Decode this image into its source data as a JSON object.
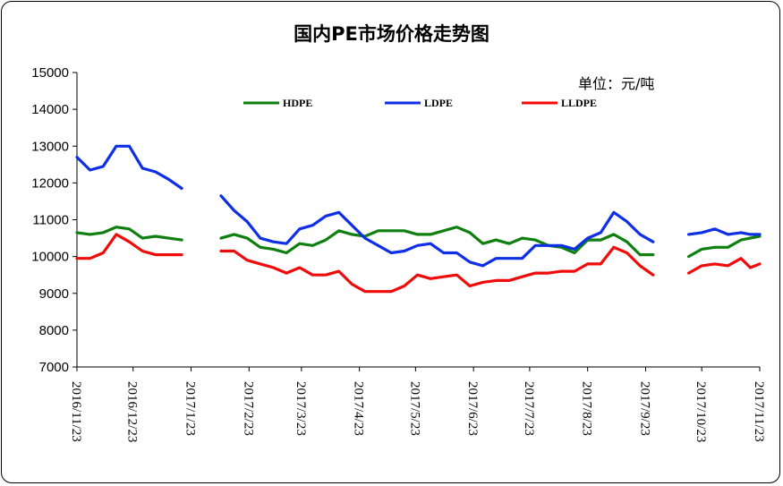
{
  "chart_data": {
    "type": "line",
    "title": "国内PE市场价格走势图",
    "unit_label": "单位：元/吨",
    "ylim": [
      7000,
      15000
    ],
    "yticks": [
      7000,
      8000,
      9000,
      10000,
      11000,
      12000,
      13000,
      14000,
      15000
    ],
    "x_ticks": [
      "2016/11/23",
      "2016/12/23",
      "2017/1/23",
      "2017/2/23",
      "2017/3/23",
      "2017/4/23",
      "2017/5/23",
      "2017/6/23",
      "2017/7/23",
      "2017/8/23",
      "2017/9/23",
      "2017/10/23",
      "2017/11/23"
    ],
    "x_start": "2016-11-23",
    "x_end": "2017-11-23",
    "grid": false,
    "legend": "top",
    "colors": {
      "HDPE": "#0f7f0f",
      "LDPE": "#0f2fe6",
      "LLDPE": "#f00a0a"
    },
    "series": [
      {
        "name": "HDPE",
        "points": [
          {
            "x": "2016-11-23",
            "y": 10650
          },
          {
            "x": "2016-11-30",
            "y": 10600
          },
          {
            "x": "2016-12-07",
            "y": 10650
          },
          {
            "x": "2016-12-14",
            "y": 10800
          },
          {
            "x": "2016-12-21",
            "y": 10750
          },
          {
            "x": "2016-12-28",
            "y": 10500
          },
          {
            "x": "2017-01-04",
            "y": 10550
          },
          {
            "x": "2017-01-11",
            "y": 10500
          },
          {
            "x": "2017-01-18",
            "y": 10450
          },
          null,
          {
            "x": "2017-02-08",
            "y": 10500
          },
          {
            "x": "2017-02-15",
            "y": 10600
          },
          {
            "x": "2017-02-22",
            "y": 10500
          },
          {
            "x": "2017-03-01",
            "y": 10250
          },
          {
            "x": "2017-03-08",
            "y": 10200
          },
          {
            "x": "2017-03-15",
            "y": 10100
          },
          {
            "x": "2017-03-22",
            "y": 10350
          },
          {
            "x": "2017-03-29",
            "y": 10300
          },
          {
            "x": "2017-04-05",
            "y": 10450
          },
          {
            "x": "2017-04-12",
            "y": 10700
          },
          {
            "x": "2017-04-19",
            "y": 10600
          },
          {
            "x": "2017-04-26",
            "y": 10550
          },
          {
            "x": "2017-05-03",
            "y": 10700
          },
          {
            "x": "2017-05-10",
            "y": 10700
          },
          {
            "x": "2017-05-17",
            "y": 10700
          },
          {
            "x": "2017-05-24",
            "y": 10600
          },
          {
            "x": "2017-05-31",
            "y": 10600
          },
          {
            "x": "2017-06-07",
            "y": 10700
          },
          {
            "x": "2017-06-14",
            "y": 10800
          },
          {
            "x": "2017-06-21",
            "y": 10650
          },
          {
            "x": "2017-06-28",
            "y": 10350
          },
          {
            "x": "2017-07-05",
            "y": 10450
          },
          {
            "x": "2017-07-12",
            "y": 10350
          },
          {
            "x": "2017-07-19",
            "y": 10500
          },
          {
            "x": "2017-07-26",
            "y": 10450
          },
          {
            "x": "2017-08-02",
            "y": 10300
          },
          {
            "x": "2017-08-09",
            "y": 10250
          },
          {
            "x": "2017-08-16",
            "y": 10100
          },
          {
            "x": "2017-08-23",
            "y": 10450
          },
          {
            "x": "2017-08-30",
            "y": 10450
          },
          {
            "x": "2017-09-06",
            "y": 10600
          },
          {
            "x": "2017-09-13",
            "y": 10400
          },
          {
            "x": "2017-09-20",
            "y": 10050
          },
          {
            "x": "2017-09-27",
            "y": 10050
          },
          null,
          {
            "x": "2017-10-16",
            "y": 10000
          },
          {
            "x": "2017-10-23",
            "y": 10200
          },
          {
            "x": "2017-10-30",
            "y": 10250
          },
          {
            "x": "2017-11-06",
            "y": 10250
          },
          {
            "x": "2017-11-13",
            "y": 10450
          },
          {
            "x": "2017-11-23",
            "y": 10550
          }
        ]
      },
      {
        "name": "LDPE",
        "points": [
          {
            "x": "2016-11-23",
            "y": 12700
          },
          {
            "x": "2016-11-30",
            "y": 12350
          },
          {
            "x": "2016-12-07",
            "y": 12450
          },
          {
            "x": "2016-12-14",
            "y": 13000
          },
          {
            "x": "2016-12-21",
            "y": 13000
          },
          {
            "x": "2016-12-28",
            "y": 12400
          },
          {
            "x": "2017-01-04",
            "y": 12300
          },
          {
            "x": "2017-01-11",
            "y": 12100
          },
          {
            "x": "2017-01-18",
            "y": 11850
          },
          null,
          {
            "x": "2017-02-08",
            "y": 11650
          },
          {
            "x": "2017-02-15",
            "y": 11250
          },
          {
            "x": "2017-02-22",
            "y": 10950
          },
          {
            "x": "2017-03-01",
            "y": 10500
          },
          {
            "x": "2017-03-08",
            "y": 10400
          },
          {
            "x": "2017-03-15",
            "y": 10350
          },
          {
            "x": "2017-03-22",
            "y": 10750
          },
          {
            "x": "2017-03-29",
            "y": 10850
          },
          {
            "x": "2017-04-05",
            "y": 11100
          },
          {
            "x": "2017-04-12",
            "y": 11200
          },
          {
            "x": "2017-04-19",
            "y": 10850
          },
          {
            "x": "2017-04-26",
            "y": 10500
          },
          {
            "x": "2017-05-03",
            "y": 10300
          },
          {
            "x": "2017-05-10",
            "y": 10100
          },
          {
            "x": "2017-05-17",
            "y": 10150
          },
          {
            "x": "2017-05-24",
            "y": 10300
          },
          {
            "x": "2017-05-31",
            "y": 10350
          },
          {
            "x": "2017-06-07",
            "y": 10100
          },
          {
            "x": "2017-06-14",
            "y": 10100
          },
          {
            "x": "2017-06-21",
            "y": 9850
          },
          {
            "x": "2017-06-28",
            "y": 9750
          },
          {
            "x": "2017-07-05",
            "y": 9950
          },
          {
            "x": "2017-07-12",
            "y": 9950
          },
          {
            "x": "2017-07-19",
            "y": 9950
          },
          {
            "x": "2017-07-26",
            "y": 10300
          },
          {
            "x": "2017-08-02",
            "y": 10300
          },
          {
            "x": "2017-08-09",
            "y": 10300
          },
          {
            "x": "2017-08-16",
            "y": 10200
          },
          {
            "x": "2017-08-23",
            "y": 10500
          },
          {
            "x": "2017-08-30",
            "y": 10650
          },
          {
            "x": "2017-09-06",
            "y": 11200
          },
          {
            "x": "2017-09-13",
            "y": 10950
          },
          {
            "x": "2017-09-20",
            "y": 10600
          },
          {
            "x": "2017-09-27",
            "y": 10400
          },
          null,
          {
            "x": "2017-10-16",
            "y": 10600
          },
          {
            "x": "2017-10-23",
            "y": 10650
          },
          {
            "x": "2017-10-30",
            "y": 10750
          },
          {
            "x": "2017-11-06",
            "y": 10600
          },
          {
            "x": "2017-11-13",
            "y": 10650
          },
          {
            "x": "2017-11-18",
            "y": 10600
          },
          {
            "x": "2017-11-23",
            "y": 10600
          }
        ]
      },
      {
        "name": "LLDPE",
        "points": [
          {
            "x": "2016-11-23",
            "y": 9950
          },
          {
            "x": "2016-11-30",
            "y": 9950
          },
          {
            "x": "2016-12-07",
            "y": 10100
          },
          {
            "x": "2016-12-14",
            "y": 10600
          },
          {
            "x": "2016-12-21",
            "y": 10400
          },
          {
            "x": "2016-12-28",
            "y": 10150
          },
          {
            "x": "2017-01-04",
            "y": 10050
          },
          {
            "x": "2017-01-11",
            "y": 10050
          },
          {
            "x": "2017-01-18",
            "y": 10050
          },
          null,
          {
            "x": "2017-02-08",
            "y": 10150
          },
          {
            "x": "2017-02-15",
            "y": 10150
          },
          {
            "x": "2017-02-22",
            "y": 9900
          },
          {
            "x": "2017-03-01",
            "y": 9800
          },
          {
            "x": "2017-03-08",
            "y": 9700
          },
          {
            "x": "2017-03-15",
            "y": 9550
          },
          {
            "x": "2017-03-22",
            "y": 9700
          },
          {
            "x": "2017-03-29",
            "y": 9500
          },
          {
            "x": "2017-04-05",
            "y": 9500
          },
          {
            "x": "2017-04-12",
            "y": 9600
          },
          {
            "x": "2017-04-19",
            "y": 9250
          },
          {
            "x": "2017-04-26",
            "y": 9050
          },
          {
            "x": "2017-05-03",
            "y": 9050
          },
          {
            "x": "2017-05-10",
            "y": 9050
          },
          {
            "x": "2017-05-17",
            "y": 9200
          },
          {
            "x": "2017-05-24",
            "y": 9500
          },
          {
            "x": "2017-05-31",
            "y": 9400
          },
          {
            "x": "2017-06-07",
            "y": 9450
          },
          {
            "x": "2017-06-14",
            "y": 9500
          },
          {
            "x": "2017-06-21",
            "y": 9200
          },
          {
            "x": "2017-06-28",
            "y": 9300
          },
          {
            "x": "2017-07-05",
            "y": 9350
          },
          {
            "x": "2017-07-12",
            "y": 9350
          },
          {
            "x": "2017-07-19",
            "y": 9450
          },
          {
            "x": "2017-07-26",
            "y": 9550
          },
          {
            "x": "2017-08-02",
            "y": 9550
          },
          {
            "x": "2017-08-09",
            "y": 9600
          },
          {
            "x": "2017-08-16",
            "y": 9600
          },
          {
            "x": "2017-08-23",
            "y": 9800
          },
          {
            "x": "2017-08-30",
            "y": 9800
          },
          {
            "x": "2017-09-06",
            "y": 10250
          },
          {
            "x": "2017-09-13",
            "y": 10100
          },
          {
            "x": "2017-09-20",
            "y": 9750
          },
          {
            "x": "2017-09-27",
            "y": 9500
          },
          null,
          {
            "x": "2017-10-16",
            "y": 9550
          },
          {
            "x": "2017-10-23",
            "y": 9750
          },
          {
            "x": "2017-10-30",
            "y": 9800
          },
          {
            "x": "2017-11-06",
            "y": 9750
          },
          {
            "x": "2017-11-13",
            "y": 9950
          },
          {
            "x": "2017-11-18",
            "y": 9700
          },
          {
            "x": "2017-11-23",
            "y": 9800
          }
        ]
      }
    ]
  }
}
